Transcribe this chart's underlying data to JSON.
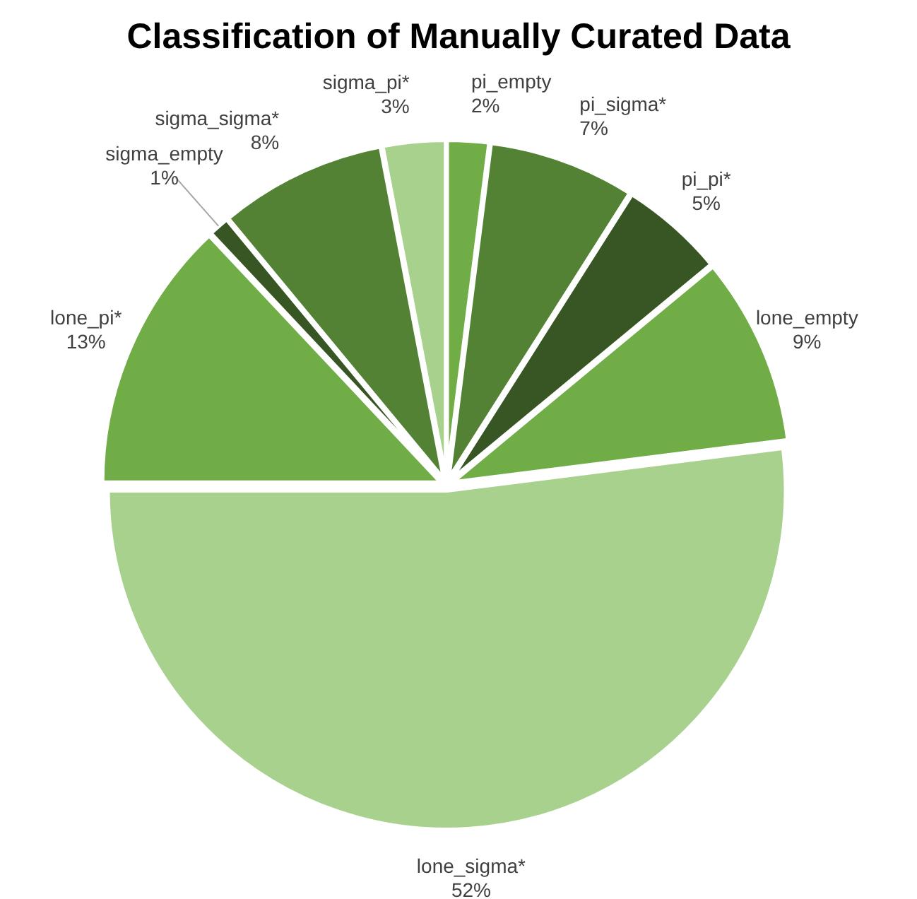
{
  "chart_data": {
    "type": "pie",
    "title": "Classification of Manually Curated Data",
    "categories": [
      "pi_empty",
      "pi_sigma*",
      "pi_pi*",
      "lone_empty",
      "lone_sigma*",
      "lone_pi*",
      "sigma_empty",
      "sigma_sigma*",
      "sigma_pi*"
    ],
    "values": [
      2,
      7,
      5,
      9,
      52,
      13,
      1,
      8,
      3
    ],
    "value_labels": [
      "2%",
      "7%",
      "5%",
      "9%",
      "52%",
      "13%",
      "1%",
      "8%",
      "3%"
    ],
    "colors": [
      "#70ad47",
      "#548235",
      "#375623",
      "#70ad47",
      "#a9d18e",
      "#70ad47",
      "#375623",
      "#548235",
      "#a9d18e"
    ]
  }
}
